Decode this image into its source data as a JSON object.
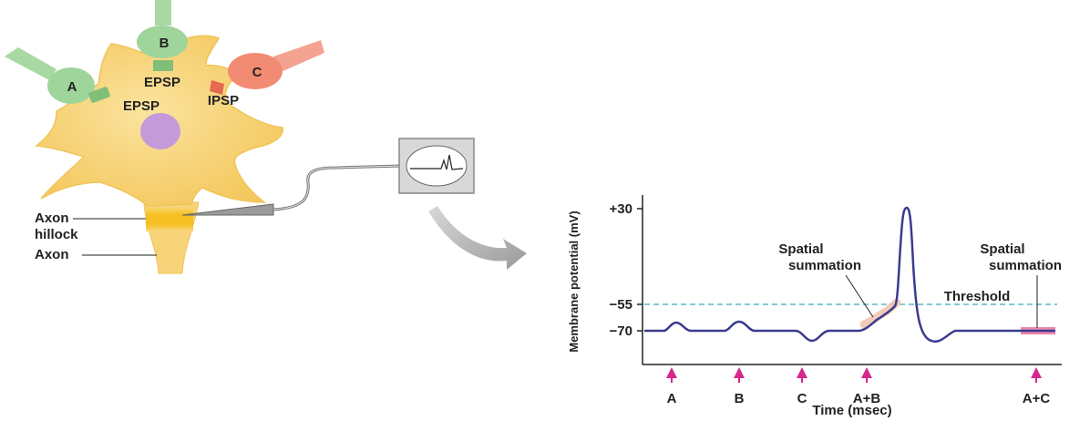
{
  "neuron": {
    "labels": {
      "terminal_a": "A",
      "terminal_b": "B",
      "terminal_c": "C",
      "epsp_b": "EPSP",
      "epsp_a": "EPSP",
      "ipsp": "IPSP",
      "axon_hillock_line1": "Axon",
      "axon_hillock_line2": "hillock",
      "axon": "Axon"
    },
    "colors": {
      "cell_body": "#f7d37a",
      "cell_outline": "#f0c458",
      "hillock": "#f7c12a",
      "nucleus": "#c49ad8",
      "excitatory_terminal": "#9fd59a",
      "inhibitory_terminal": "#f28b73"
    }
  },
  "graph": {
    "ylabel": "Membrane potential (mV)",
    "xlabel": "Time (msec)",
    "ticks": [
      {
        "label": "+30",
        "value": 30
      },
      {
        "label": "−55",
        "value": -55
      },
      {
        "label": "−70",
        "value": -70
      }
    ],
    "threshold_label": "Threshold",
    "threshold_value": -55,
    "summation_label_1_line1": "Spatial",
    "summation_label_1_line2": "summation",
    "summation_label_2_line1": "Spatial",
    "summation_label_2_line2": "summation",
    "stimuli": [
      "A",
      "B",
      "C",
      "A+B",
      "A+C"
    ],
    "colors": {
      "trace": "#3b3b8f",
      "threshold": "#5bb8c8",
      "arrows": "#d6268f",
      "highlight": "#e8a0b8"
    }
  }
}
